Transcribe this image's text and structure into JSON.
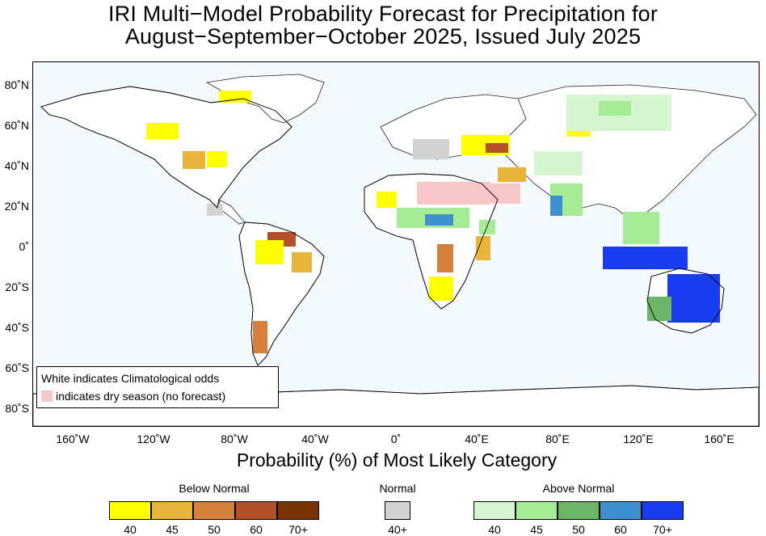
{
  "title": {
    "line1": "IRI Multi−Model Probability Forecast for Precipitation for",
    "line2": "August−September−October 2025, Issued July 2025"
  },
  "axes": {
    "lat_labels": [
      "80˚N",
      "60˚N",
      "40˚N",
      "20˚N",
      "0˚",
      "20˚S",
      "40˚S",
      "60˚S",
      "80˚S"
    ],
    "lon_labels": [
      "160˚W",
      "120˚W",
      "80˚W",
      "40˚W",
      "0˚",
      "40˚E",
      "80˚E",
      "120˚E",
      "160˚E"
    ],
    "x_title": "Probability (%) of Most Likely Category"
  },
  "map_legend": {
    "line1": "White indicates Climatological odds",
    "line2": "indicates dry season (no forecast)",
    "dry_color": "#f7c6c7"
  },
  "colorbar": {
    "below": {
      "title": "Below Normal",
      "labels": [
        "40",
        "45",
        "50",
        "60",
        "70+"
      ],
      "colors": [
        "#ffff00",
        "#e8b53a",
        "#d4803a",
        "#b3512a",
        "#7a3300"
      ]
    },
    "normal": {
      "title": "Normal",
      "labels": [
        "40+"
      ],
      "colors": [
        "#d3d3d3"
      ]
    },
    "above": {
      "title": "Above Normal",
      "labels": [
        "40",
        "45",
        "50",
        "60",
        "70+"
      ],
      "colors": [
        "#d4f5cf",
        "#a6eb95",
        "#6db566",
        "#3d8fcf",
        "#1a3cf0"
      ]
    }
  }
}
